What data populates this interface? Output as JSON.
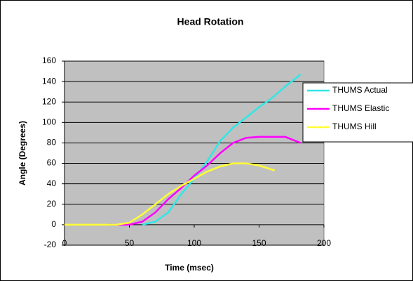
{
  "chart_data": {
    "type": "line",
    "title": "Head Rotation",
    "x_label": "Time (msec)",
    "y_label": "Angle (Degrees)",
    "series": [
      {
        "name": "THUMS Actual",
        "color": "#33e6e6",
        "x": [
          60,
          70,
          80,
          90,
          100,
          110,
          120,
          130,
          140,
          150,
          160,
          170,
          182
        ],
        "values": [
          0,
          3,
          12,
          30,
          45,
          62,
          82,
          95,
          105,
          115,
          124,
          135,
          147
        ]
      },
      {
        "name": "THUMS Elastic",
        "color": "#ff00ff",
        "x": [
          33,
          50,
          60,
          70,
          80,
          90,
          100,
          110,
          120,
          130,
          140,
          150,
          160,
          170,
          182
        ],
        "values": [
          0,
          0,
          3,
          12,
          25,
          36,
          48,
          58,
          70,
          80,
          85,
          86,
          86,
          86,
          80
        ]
      },
      {
        "name": "THUMS Hill",
        "color": "#ffff33",
        "x": [
          0,
          40,
          50,
          60,
          70,
          80,
          90,
          100,
          110,
          120,
          130,
          140,
          150,
          162
        ],
        "values": [
          0,
          0,
          2,
          10,
          20,
          30,
          38,
          45,
          52,
          57,
          60,
          60,
          58,
          53
        ]
      }
    ],
    "xlim": [
      0,
      200
    ],
    "xticks": [
      0,
      50,
      100,
      150,
      200
    ],
    "ylim": [
      -20,
      160
    ],
    "yticks": [
      -20,
      0,
      20,
      40,
      60,
      80,
      100,
      120,
      140,
      160
    ],
    "grid": true,
    "legend": "right"
  }
}
